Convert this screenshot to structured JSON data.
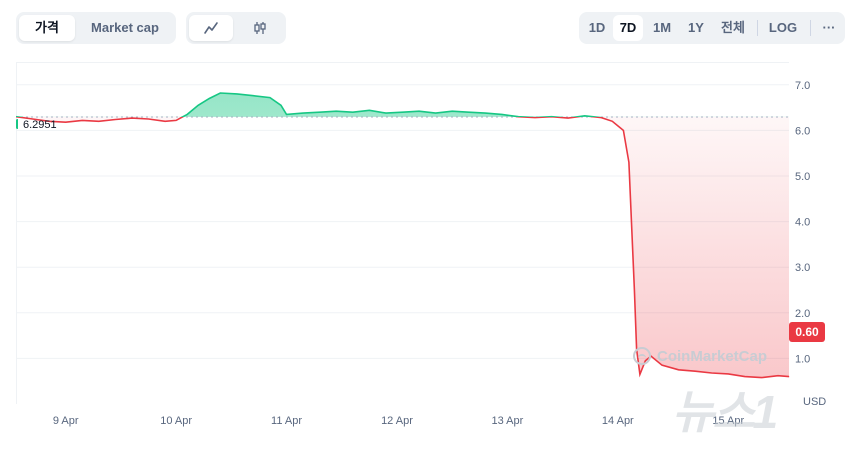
{
  "toolbar": {
    "metric_tabs": [
      {
        "label": "가격",
        "active": true
      },
      {
        "label": "Market cap",
        "active": false
      }
    ],
    "chart_type_icons": [
      "line-chart-icon",
      "candlestick-icon"
    ],
    "ranges": [
      {
        "label": "1D",
        "active": false
      },
      {
        "label": "7D",
        "active": true
      },
      {
        "label": "1M",
        "active": false
      },
      {
        "label": "1Y",
        "active": false
      },
      {
        "label": "전체",
        "active": false
      }
    ],
    "log_label": "LOG",
    "more_label": "···"
  },
  "start_price_label": "6.2951",
  "current_price_label": "0.60",
  "currency_label": "USD",
  "watermark_text": "CoinMarketCap",
  "news_watermark": "뉴스1",
  "colors": {
    "up": "#16c784",
    "down": "#ea3943",
    "up_fill": "#16c784",
    "down_fill": "#ea3943",
    "axis_text": "#58667e"
  },
  "chart_data": {
    "type": "line",
    "title": "",
    "xlabel": "",
    "ylabel": "",
    "ylim": [
      0,
      7.5
    ],
    "y_ticks": [
      "1.0",
      "2.0",
      "3.0",
      "4.0",
      "5.0",
      "6.0",
      "7.0"
    ],
    "y_tick_values": [
      1,
      2,
      3,
      4,
      5,
      6,
      7
    ],
    "x_ticks": [
      "9 Apr",
      "10 Apr",
      "11 Apr",
      "12 Apr",
      "13 Apr",
      "14 Apr",
      "15 Apr"
    ],
    "x_tick_values": [
      9,
      10,
      11,
      12,
      13,
      14,
      15
    ],
    "xlim": [
      8.55,
      15.55
    ],
    "baseline": 6.2951,
    "last_value": 0.6,
    "series": [
      {
        "points": [
          [
            8.55,
            6.3
          ],
          [
            8.7,
            6.25
          ],
          [
            8.85,
            6.2
          ],
          [
            9.0,
            6.18
          ],
          [
            9.15,
            6.22
          ],
          [
            9.3,
            6.2
          ],
          [
            9.45,
            6.24
          ],
          [
            9.6,
            6.27
          ],
          [
            9.75,
            6.25
          ],
          [
            9.9,
            6.2
          ],
          [
            10.0,
            6.22
          ],
          [
            10.1,
            6.35
          ],
          [
            10.2,
            6.55
          ],
          [
            10.3,
            6.7
          ],
          [
            10.4,
            6.82
          ],
          [
            10.55,
            6.8
          ],
          [
            10.7,
            6.76
          ],
          [
            10.85,
            6.72
          ],
          [
            10.95,
            6.55
          ],
          [
            11.0,
            6.35
          ],
          [
            11.15,
            6.38
          ],
          [
            11.3,
            6.4
          ],
          [
            11.45,
            6.42
          ],
          [
            11.6,
            6.4
          ],
          [
            11.75,
            6.44
          ],
          [
            11.9,
            6.38
          ],
          [
            12.05,
            6.4
          ],
          [
            12.2,
            6.42
          ],
          [
            12.35,
            6.38
          ],
          [
            12.5,
            6.42
          ],
          [
            12.65,
            6.4
          ],
          [
            12.8,
            6.38
          ],
          [
            12.95,
            6.35
          ],
          [
            13.1,
            6.3
          ],
          [
            13.25,
            6.28
          ],
          [
            13.4,
            6.3
          ],
          [
            13.55,
            6.27
          ],
          [
            13.7,
            6.32
          ],
          [
            13.85,
            6.28
          ],
          [
            13.95,
            6.2
          ],
          [
            14.05,
            6.0
          ],
          [
            14.1,
            5.3
          ],
          [
            14.15,
            2.5
          ],
          [
            14.17,
            1.2
          ],
          [
            14.2,
            0.65
          ],
          [
            14.25,
            0.95
          ],
          [
            14.3,
            1.05
          ],
          [
            14.4,
            0.85
          ],
          [
            14.55,
            0.75
          ],
          [
            14.7,
            0.72
          ],
          [
            14.85,
            0.68
          ],
          [
            15.0,
            0.66
          ],
          [
            15.15,
            0.6
          ],
          [
            15.3,
            0.58
          ],
          [
            15.45,
            0.62
          ],
          [
            15.55,
            0.6
          ]
        ]
      }
    ],
    "grid": true,
    "log_scale": false
  }
}
